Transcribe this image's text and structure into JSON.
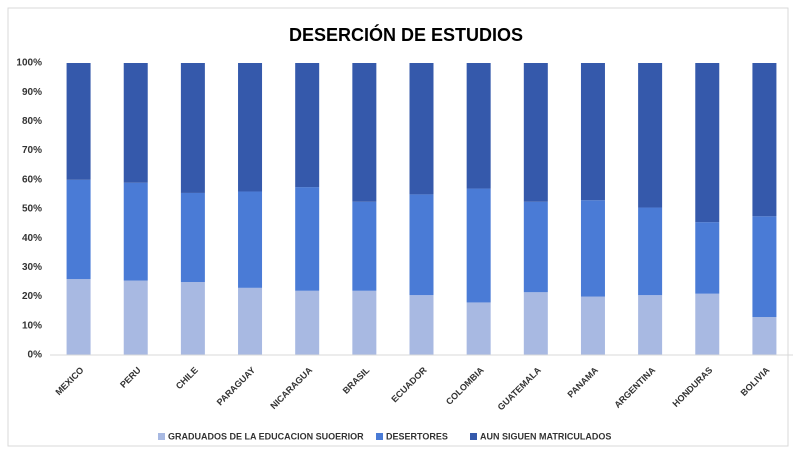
{
  "chart_data": {
    "type": "stacked_bar_100",
    "title": "DESERCIÓN DE ESTUDIOS",
    "categories": [
      "MEXICO",
      "PERU",
      "CHILE",
      "PARAGUAY",
      "NICARAGUA",
      "BRASIL",
      "ECUADOR",
      "COLOMBIA",
      "GUATEMALA",
      "PANAMA",
      "ARGENTINA",
      "HONDURAS",
      "BOLIVIA"
    ],
    "series": [
      {
        "name": "GRADUADOS DE LA EDUCACION SUOERIOR",
        "color": "#a8b9e2",
        "values": [
          26,
          25.5,
          25,
          23,
          22,
          22,
          20.5,
          18,
          21.5,
          20,
          20.5,
          21,
          13
        ]
      },
      {
        "name": "DESERTORES",
        "color": "#4a7bd6",
        "values": [
          34,
          33.5,
          30.5,
          33,
          35.5,
          30.5,
          34.5,
          39,
          31,
          33,
          30,
          24.5,
          34.5
        ]
      },
      {
        "name": "AUN SIGUEN MATRICULADOS",
        "color": "#3559ab",
        "values": [
          40,
          41,
          44.5,
          44,
          42.5,
          47.5,
          45,
          43,
          47.5,
          47,
          49.5,
          54.5,
          52.5
        ]
      }
    ],
    "ylim": [
      0,
      100
    ],
    "yticks": [
      {
        "value": 0,
        "label": "0%"
      },
      {
        "value": 10,
        "label": "10%"
      },
      {
        "value": 20,
        "label": "20%"
      },
      {
        "value": 30,
        "label": "30%"
      },
      {
        "value": 40,
        "label": "40%"
      },
      {
        "value": 50,
        "label": "50%"
      },
      {
        "value": 60,
        "label": "60%"
      },
      {
        "value": 70,
        "label": "70%"
      },
      {
        "value": 80,
        "label": "80%"
      },
      {
        "value": 90,
        "label": "90%"
      },
      {
        "value": 100,
        "label": "100%"
      }
    ],
    "grid": false,
    "legend": "bottom"
  }
}
